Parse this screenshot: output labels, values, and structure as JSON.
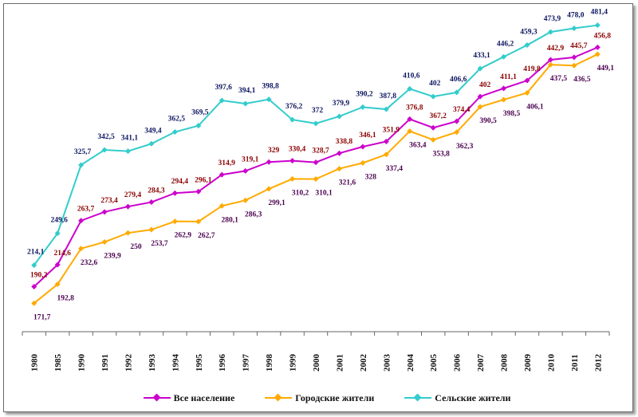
{
  "chart_data": {
    "type": "line",
    "title": "",
    "xlabel": "",
    "ylabel": "",
    "categories": [
      "1980",
      "1985",
      "1990",
      "1991",
      "1992",
      "1993",
      "1994",
      "1995",
      "1996",
      "1997",
      "1998",
      "1999",
      "2000",
      "2001",
      "2002",
      "2003",
      "2004",
      "2005",
      "2006",
      "2007",
      "2008",
      "2009",
      "2010",
      "2011",
      "2012"
    ],
    "ylim": [
      140,
      490
    ],
    "grid": false,
    "legend_position": "bottom",
    "series": [
      {
        "name": "Все население",
        "color": "#cc00cc",
        "label_color": "#8b0000",
        "values": [
          190.2,
          214.6,
          263.7,
          273.4,
          279.4,
          284.3,
          294.4,
          296.1,
          314.9,
          319.1,
          329,
          330.4,
          328.7,
          338.8,
          346.1,
          351.9,
          376.8,
          367.2,
          374.4,
          402,
          411.1,
          419.8,
          442.9,
          445.7,
          456.8
        ],
        "labels": [
          "190,2",
          "214,6",
          "263,7",
          "273,4",
          "279,4",
          "284,3",
          "294,4",
          "296,1",
          "314,9",
          "319,1",
          "329",
          "330,4",
          "328,7",
          "338,8",
          "346,1",
          "351,9",
          "376,8",
          "367,2",
          "374,4",
          "402",
          "411,1",
          "419,8",
          "442,9",
          "445,7",
          "456,8"
        ]
      },
      {
        "name": "Городские жители",
        "color": "#ffaa00",
        "label_color": "#4b0050",
        "values": [
          171.7,
          192.8,
          232.6,
          239.9,
          250,
          253.7,
          262.9,
          262.7,
          280.1,
          286.3,
          299.1,
          310.2,
          310.1,
          321.6,
          328,
          337.4,
          363.4,
          353.8,
          362.3,
          390.5,
          398.5,
          406.1,
          437.5,
          436.5,
          449.1
        ],
        "labels": [
          "171,7",
          "192,8",
          "232,6",
          "239,9",
          "250",
          "253,7",
          "262,9",
          "262,7",
          "280,1",
          "286,3",
          "299,1",
          "310,2",
          "310,1",
          "321,6",
          "328",
          "337,4",
          "363,4",
          "353,8",
          "362,3",
          "390,5",
          "398,5",
          "406,1",
          "437,5",
          "436,5",
          "449,1"
        ]
      },
      {
        "name": "Сельские жители",
        "color": "#33cccc",
        "label_color": "#0d1660",
        "values": [
          214.1,
          249.6,
          325.7,
          342.5,
          341.1,
          349.4,
          362.5,
          369.5,
          397.6,
          394.1,
          398.8,
          376.2,
          372,
          379.9,
          390.2,
          387.8,
          410.6,
          402,
          406.6,
          433.1,
          446.2,
          459.3,
          473.9,
          478,
          481.4
        ],
        "labels": [
          "214,1",
          "249,6",
          "325,7",
          "342,5",
          "341,1",
          "349,4",
          "362,5",
          "369,5",
          "397,6",
          "394,1",
          "398,8",
          "376,2",
          "372",
          "379,9",
          "390,2",
          "387,8",
          "410,6",
          "402",
          "406,6",
          "433,1",
          "446,2",
          "459,3",
          "473,9",
          "478,0",
          "481,4"
        ]
      }
    ]
  }
}
